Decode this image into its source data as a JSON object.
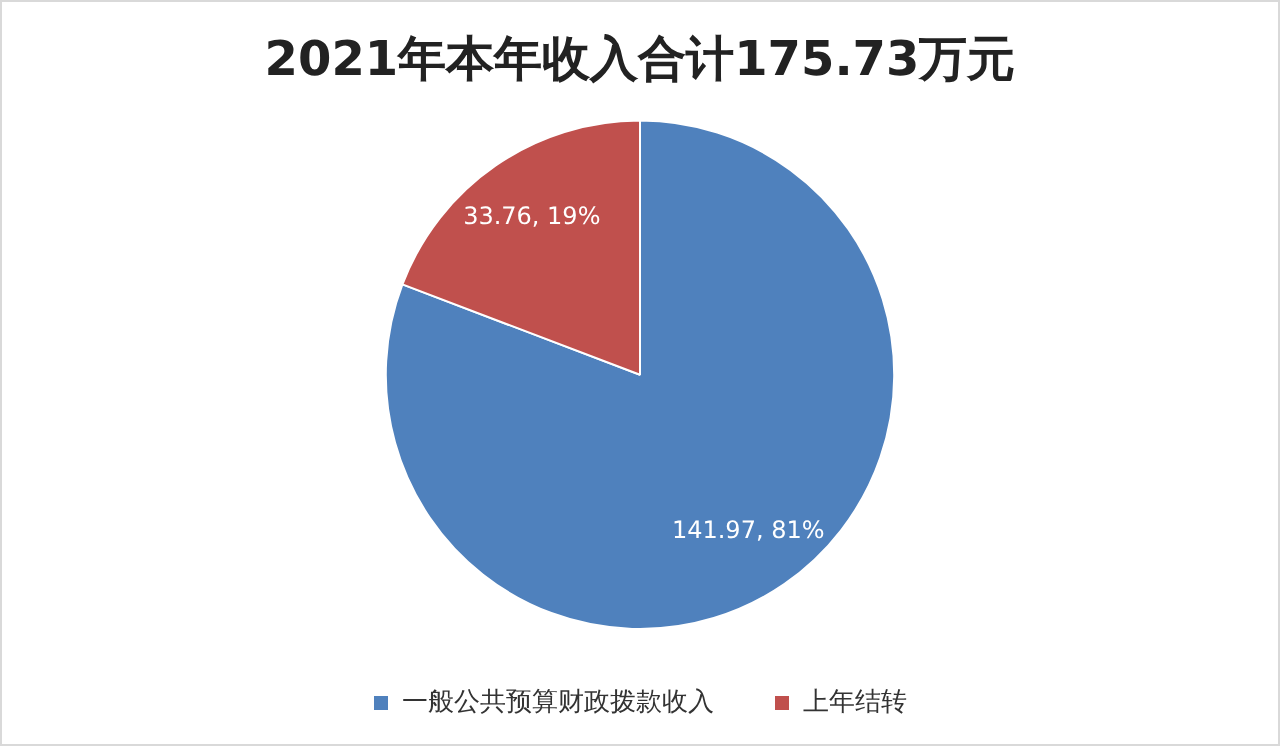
{
  "chart_data": {
    "type": "pie",
    "title": "2021年本年收入合计175.73万元",
    "categories": [
      "一般公共预算财政拨款收入",
      "上年结转"
    ],
    "values": [
      141.97,
      33.76
    ],
    "colors": [
      "#4f81bd",
      "#c0504d"
    ],
    "value_labels": [
      "141.97, 81%",
      "33.76, 19%"
    ],
    "legend": "bottom"
  }
}
